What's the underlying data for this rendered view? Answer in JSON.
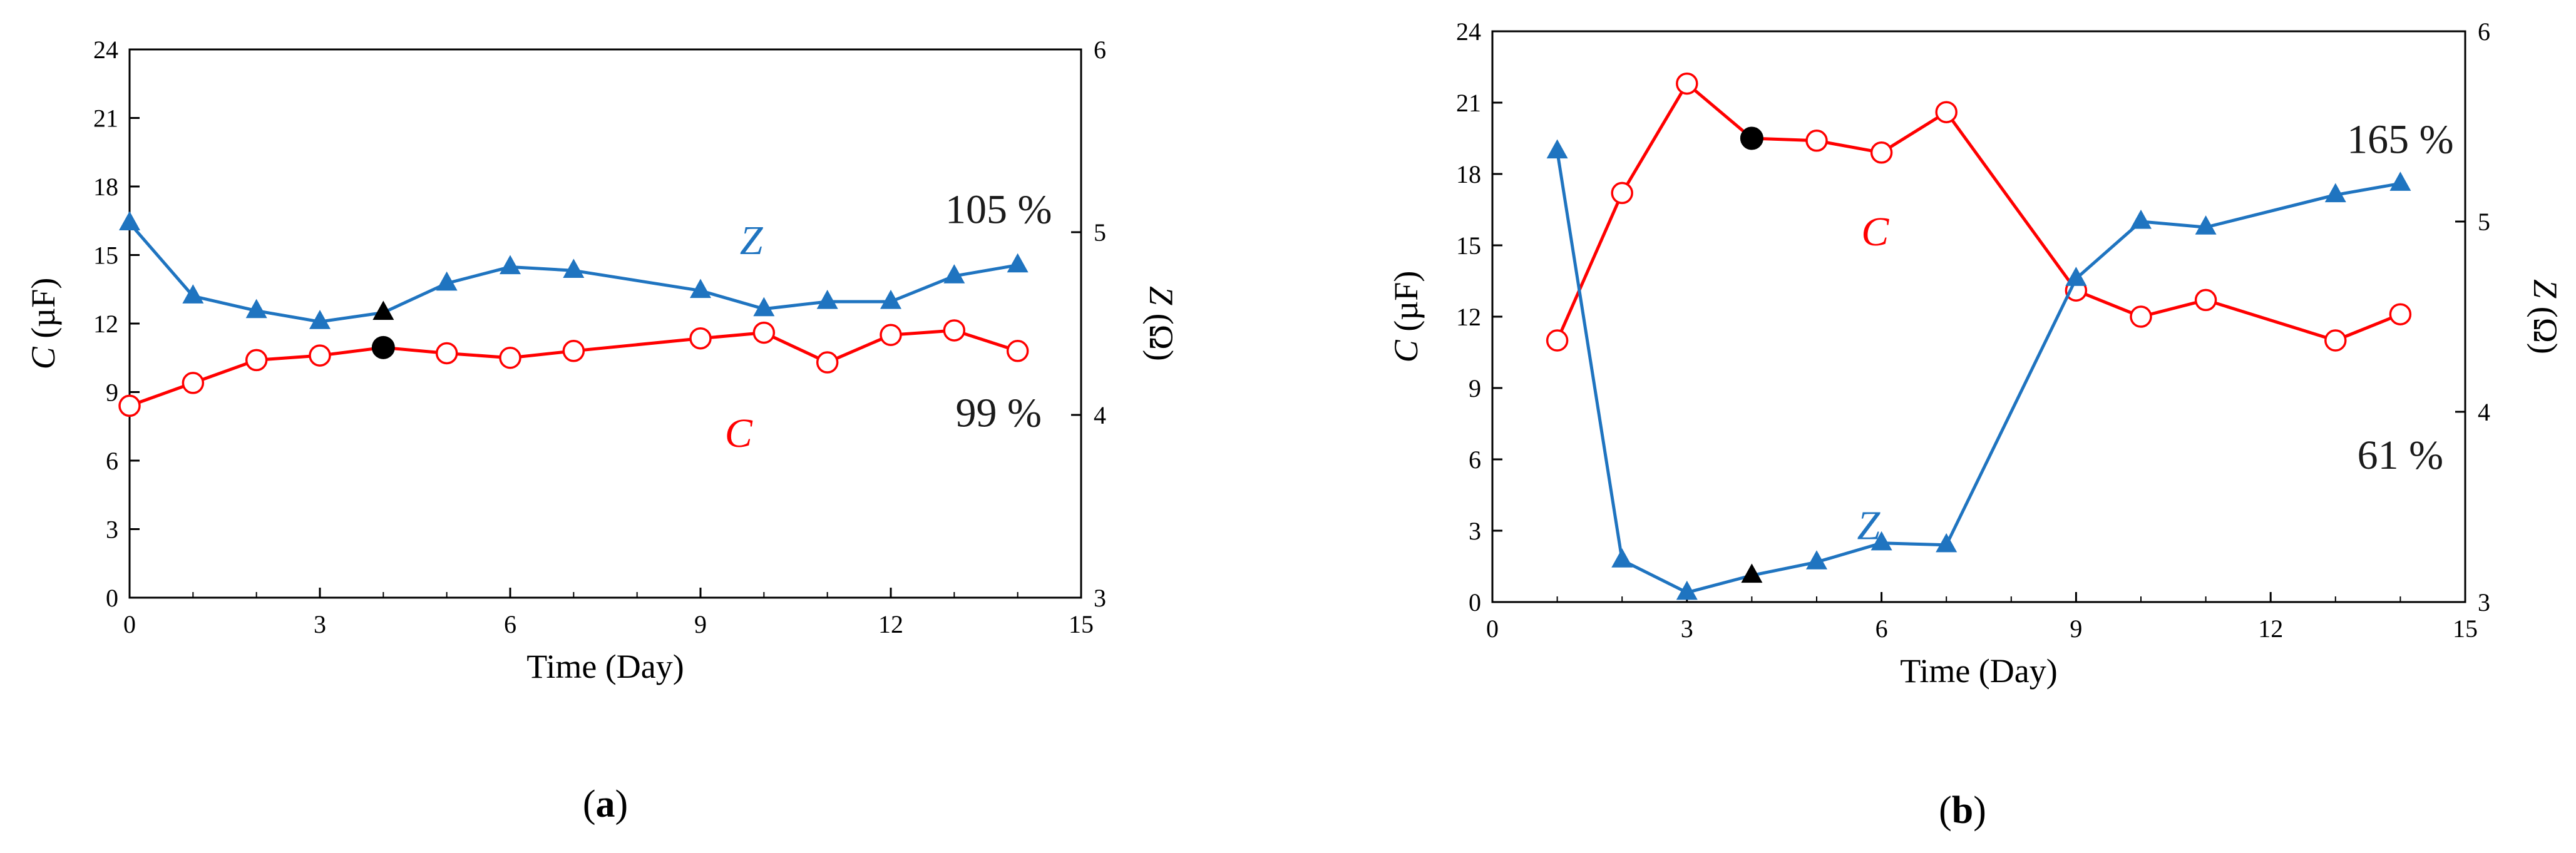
{
  "colors": {
    "c_series": "#ff0000",
    "z_series": "#1f74c0",
    "highlight": "#000000",
    "axis": "#000000"
  },
  "chart_data": [
    {
      "id": "a",
      "type": "line",
      "panel_label": {
        "open": "(",
        "letter": "a",
        "close": ")"
      },
      "xlabel": "Time (Day)",
      "ylabel_left": {
        "var": "C",
        "unit": " (µF)"
      },
      "ylabel_right": {
        "var": "Z",
        "unit": " (Ω)"
      },
      "xlim": [
        0,
        15
      ],
      "xticks": [
        0,
        3,
        6,
        9,
        12,
        15
      ],
      "ylim_left": [
        0,
        24
      ],
      "yticks_left": [
        0,
        3,
        6,
        9,
        12,
        15,
        18,
        21,
        24
      ],
      "ylim_right": [
        3,
        6
      ],
      "yticks_right": [
        3,
        4,
        5,
        6
      ],
      "series": [
        {
          "name": "C",
          "axis": "left",
          "marker": "open-circle",
          "color_key": "c_series",
          "x": [
            0,
            1,
            2,
            3,
            4,
            5,
            6,
            7,
            9,
            10,
            11,
            12,
            13,
            14
          ],
          "y": [
            8.4,
            9.4,
            10.4,
            10.6,
            10.95,
            10.7,
            10.5,
            10.8,
            11.35,
            11.6,
            10.3,
            11.5,
            11.7,
            10.8
          ],
          "highlight_index": 4,
          "label": {
            "text": "C",
            "x": 9.6,
            "y": 6.6
          },
          "percent": {
            "text": "99 %",
            "x": 13.7,
            "y": 7.5
          }
        },
        {
          "name": "Z",
          "axis": "right",
          "marker": "filled-triangle",
          "color_key": "z_series",
          "x": [
            0,
            1,
            2,
            3,
            4,
            5,
            6,
            7,
            9,
            10,
            11,
            12,
            13,
            14
          ],
          "y": [
            5.05,
            4.65,
            4.57,
            4.51,
            4.56,
            4.72,
            4.81,
            4.79,
            4.68,
            4.58,
            4.62,
            4.62,
            4.76,
            4.82
          ],
          "highlight_index": 4,
          "label": {
            "text": "Z",
            "x": 9.8,
            "y": 4.88
          },
          "percent": {
            "text": "105 %",
            "x": 13.7,
            "y": 5.05
          }
        }
      ]
    },
    {
      "id": "b",
      "type": "line",
      "panel_label": {
        "open": "(",
        "letter": "b",
        "close": ")"
      },
      "xlabel": "Time (Day)",
      "ylabel_left": {
        "var": "C",
        "unit": " (µF)"
      },
      "ylabel_right": {
        "var": "Z",
        "unit": " (Ω)"
      },
      "xlim": [
        0,
        15
      ],
      "xticks": [
        0,
        3,
        6,
        9,
        12,
        15
      ],
      "ylim_left": [
        0,
        24
      ],
      "yticks_left": [
        0,
        3,
        6,
        9,
        12,
        15,
        18,
        21,
        24
      ],
      "ylim_right": [
        3,
        6
      ],
      "yticks_right": [
        3,
        4,
        5,
        6
      ],
      "series": [
        {
          "name": "C",
          "axis": "left",
          "marker": "open-circle",
          "color_key": "c_series",
          "x": [
            1,
            2,
            3,
            4,
            5,
            6,
            7,
            9,
            10,
            11,
            13,
            14
          ],
          "y": [
            11.0,
            17.2,
            21.8,
            19.5,
            19.4,
            18.9,
            20.6,
            13.1,
            12.0,
            12.7,
            11.0,
            12.1
          ],
          "highlight_index": 3,
          "label": {
            "text": "C",
            "x": 5.9,
            "y": 15.0
          },
          "percent": {
            "text": "61 %",
            "x": 14.0,
            "y": 5.6
          }
        },
        {
          "name": "Z",
          "axis": "right",
          "marker": "filled-triangle",
          "color_key": "z_series",
          "x": [
            1,
            2,
            3,
            4,
            5,
            6,
            7,
            9,
            10,
            11,
            13,
            14
          ],
          "y": [
            5.37,
            3.22,
            3.05,
            3.14,
            3.21,
            3.31,
            3.3,
            4.7,
            5.0,
            4.97,
            5.14,
            5.2
          ],
          "highlight_index": 3,
          "label": {
            "text": "Z",
            "x": 5.8,
            "y": 3.33
          },
          "percent": {
            "text": "165 %",
            "x": 14.0,
            "y": 5.36
          }
        }
      ]
    }
  ]
}
